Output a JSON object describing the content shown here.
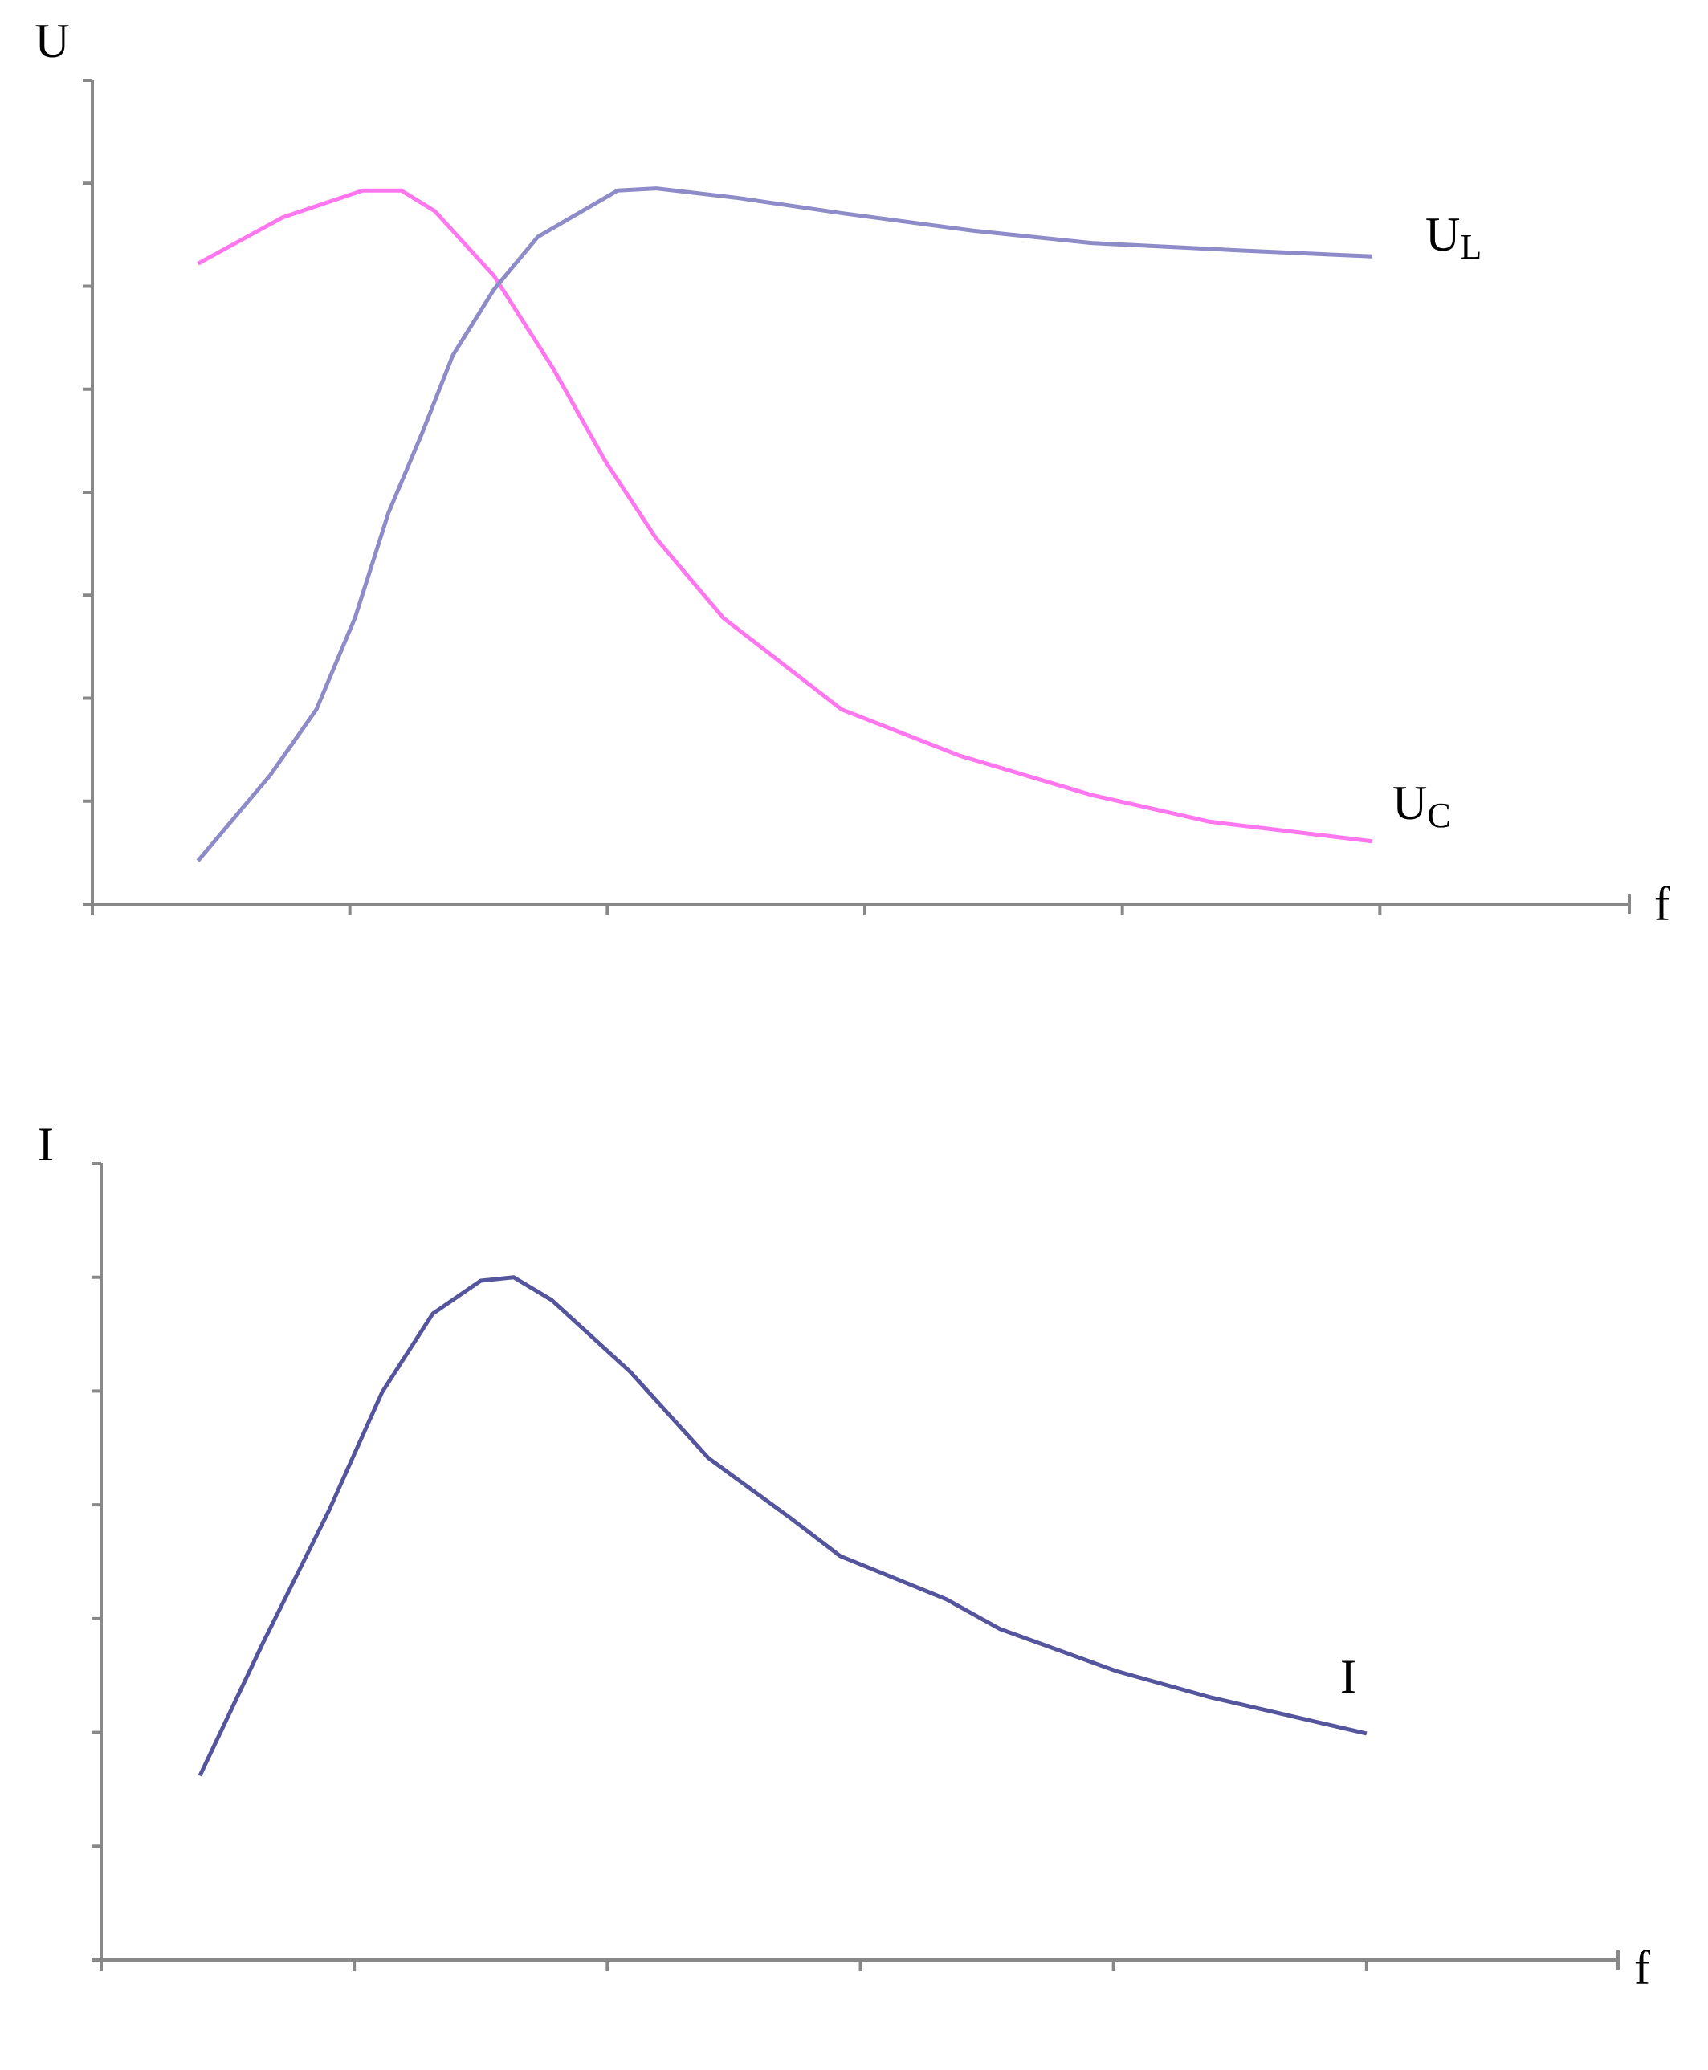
{
  "chart_data": [
    {
      "type": "line",
      "y_label": "U",
      "x_label": "f",
      "xlim": [
        0,
        6
      ],
      "xticks": [
        0,
        1,
        2,
        3,
        4,
        5
      ],
      "ylim": [
        0,
        8
      ],
      "yticks": [
        0,
        1,
        2,
        3,
        4,
        5,
        6,
        7,
        8
      ],
      "series": [
        {
          "name": "U",
          "subscript": "C",
          "color": "#ff77ee",
          "x": [
            0.41,
            0.74,
            1.05,
            1.2,
            1.33,
            1.56,
            1.79,
            1.99,
            2.19,
            2.45,
            2.91,
            3.37,
            3.88,
            4.34,
            4.97
          ],
          "values": [
            6.22,
            6.67,
            6.93,
            6.93,
            6.73,
            6.1,
            5.2,
            4.31,
            3.55,
            2.78,
            1.89,
            1.44,
            1.06,
            0.8,
            0.61
          ]
        },
        {
          "name": "U",
          "subscript": "L",
          "color": "#8e8cc8",
          "x": [
            0.41,
            0.69,
            0.87,
            1.02,
            1.15,
            1.28,
            1.4,
            1.56,
            1.73,
            2.04,
            2.19,
            2.5,
            2.91,
            3.42,
            3.88,
            4.44,
            4.97
          ],
          "values": [
            0.42,
            1.25,
            1.89,
            2.78,
            3.8,
            4.57,
            5.33,
            5.97,
            6.48,
            6.93,
            6.95,
            6.86,
            6.71,
            6.54,
            6.42,
            6.35,
            6.29
          ]
        }
      ]
    },
    {
      "type": "line",
      "y_label": "I",
      "x_label": "f",
      "xlim": [
        0,
        6
      ],
      "xticks": [
        0,
        1,
        2,
        3,
        4,
        5
      ],
      "ylim": [
        0,
        7
      ],
      "yticks": [
        0,
        1,
        2,
        3,
        4,
        5,
        6,
        7
      ],
      "series": [
        {
          "name": "I",
          "color": "#55559e",
          "x": [
            0.39,
            0.64,
            0.9,
            1.11,
            1.31,
            1.5,
            1.63,
            1.78,
            2.09,
            2.4,
            2.72,
            2.92,
            3.34,
            3.55,
            4.01,
            4.38,
            5.0
          ],
          "values": [
            1.62,
            2.79,
            3.95,
            4.99,
            5.68,
            5.97,
            6.0,
            5.8,
            5.17,
            4.41,
            3.89,
            3.55,
            3.17,
            2.91,
            2.54,
            2.31,
            1.99
          ]
        }
      ]
    }
  ]
}
